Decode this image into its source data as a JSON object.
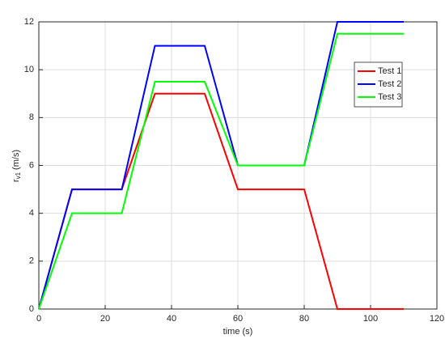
{
  "chart_data": {
    "type": "line",
    "xlabel": "time (s)",
    "ylabel": {
      "base": "r",
      "sub": "v1",
      "unit": "(m/s)"
    },
    "x": [
      0,
      10,
      25,
      35,
      50,
      60,
      80,
      90,
      110
    ],
    "series": [
      {
        "name": "Test 1",
        "color": "#ff0000",
        "values": [
          0,
          5,
          5,
          9,
          9,
          5,
          5,
          0,
          0
        ]
      },
      {
        "name": "Test 2",
        "color": "#0000ff",
        "values": [
          0,
          5,
          5,
          11,
          11,
          6,
          6,
          12,
          12
        ]
      },
      {
        "name": "Test 3",
        "color": "#00ff00",
        "values": [
          0,
          4,
          4,
          9.5,
          9.5,
          6,
          6,
          11.5,
          11.5
        ]
      }
    ],
    "xlim": [
      0,
      120
    ],
    "xticks": [
      0,
      20,
      40,
      60,
      80,
      100,
      120
    ],
    "ylim": [
      0,
      12
    ],
    "yticks": [
      0,
      2,
      4,
      6,
      8,
      10,
      12
    ],
    "grid": true,
    "legend": "northeast"
  }
}
